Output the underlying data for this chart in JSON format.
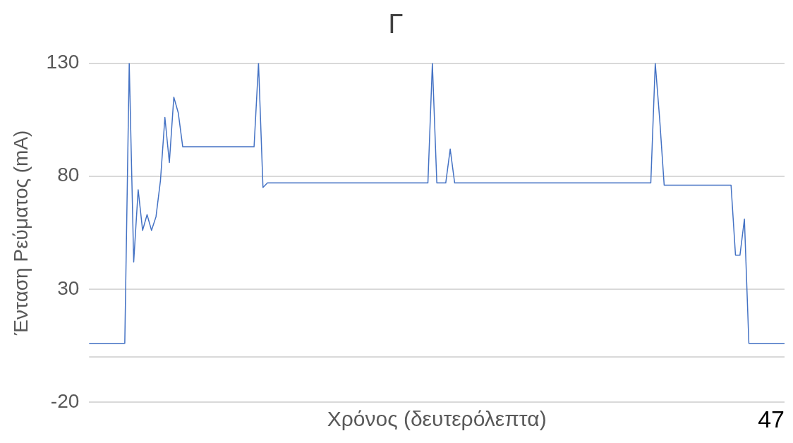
{
  "chart_data": {
    "type": "line",
    "title": "Γ",
    "xlabel": "Χρόνος (δευτερόλεπτα)",
    "ylabel": "Ένταση Ρεύματος (mA)",
    "categories": [
      null,
      null,
      null,
      null,
      null,
      null,
      null,
      null,
      null,
      null,
      null,
      null,
      null,
      null,
      null,
      null,
      null,
      null,
      null,
      null,
      null,
      null,
      null,
      null,
      null,
      null,
      null,
      null,
      null,
      null,
      null,
      null,
      null,
      null,
      null,
      null,
      null,
      null,
      null,
      null,
      null,
      null,
      null,
      null,
      null,
      null,
      null,
      null,
      null,
      null,
      null,
      null,
      null,
      null,
      null,
      null,
      null,
      null,
      null,
      null,
      null,
      null,
      null,
      null,
      null,
      null,
      null,
      null,
      null,
      null,
      null,
      null,
      null,
      null,
      null,
      null,
      null,
      null,
      null,
      null,
      null,
      null,
      null,
      null,
      null,
      null,
      null,
      null,
      null,
      null,
      null,
      null,
      null,
      null,
      null,
      null,
      null,
      null,
      null,
      null,
      null,
      null,
      null,
      null,
      null,
      null,
      null,
      null,
      null,
      null,
      null,
      null,
      null,
      null,
      null,
      null,
      null,
      null,
      null,
      null,
      null,
      null,
      null,
      null,
      null,
      null,
      null,
      null,
      null,
      null,
      null,
      null,
      null,
      null,
      null,
      null,
      null,
      null,
      null,
      null,
      null,
      null,
      null,
      null,
      null,
      null,
      null,
      null,
      null,
      null,
      null,
      null,
      null,
      null,
      null,
      null,
      null
    ],
    "series": [
      {
        "color": "#4472c4",
        "values": [
          6,
          6,
          6,
          6,
          6,
          6,
          6,
          6,
          6,
          130,
          42,
          74,
          56,
          63,
          56,
          62,
          78,
          106,
          86,
          115,
          108,
          93,
          93,
          93,
          93,
          93,
          93,
          93,
          93,
          93,
          93,
          93,
          93,
          93,
          93,
          93,
          93,
          93,
          130,
          75,
          77,
          77,
          77,
          77,
          77,
          77,
          77,
          77,
          77,
          77,
          77,
          77,
          77,
          77,
          77,
          77,
          77,
          77,
          77,
          77,
          77,
          77,
          77,
          77,
          77,
          77,
          77,
          77,
          77,
          77,
          77,
          77,
          77,
          77,
          77,
          77,
          77,
          130,
          77,
          77,
          77,
          92,
          77,
          77,
          77,
          77,
          77,
          77,
          77,
          77,
          77,
          77,
          77,
          77,
          77,
          77,
          77,
          77,
          77,
          77,
          77,
          77,
          77,
          77,
          77,
          77,
          77,
          77,
          77,
          77,
          77,
          77,
          77,
          77,
          77,
          77,
          77,
          77,
          77,
          77,
          77,
          77,
          77,
          77,
          77,
          77,
          77,
          130,
          105,
          76,
          76,
          76,
          76,
          76,
          76,
          76,
          76,
          76,
          76,
          76,
          76,
          76,
          76,
          76,
          76,
          45,
          45,
          61,
          6,
          6,
          6,
          6,
          6,
          6,
          6,
          6,
          6
        ]
      }
    ],
    "ylim": [
      -20,
      130
    ],
    "yticks": [
      -20,
      30,
      80,
      130
    ],
    "grid": "y",
    "tick_labels": "y",
    "marker": "none",
    "ref_lines": [
      {
        "axis": "y",
        "value": 0,
        "color": "#d9d9d9"
      }
    ],
    "annotations": [
      "47"
    ]
  }
}
